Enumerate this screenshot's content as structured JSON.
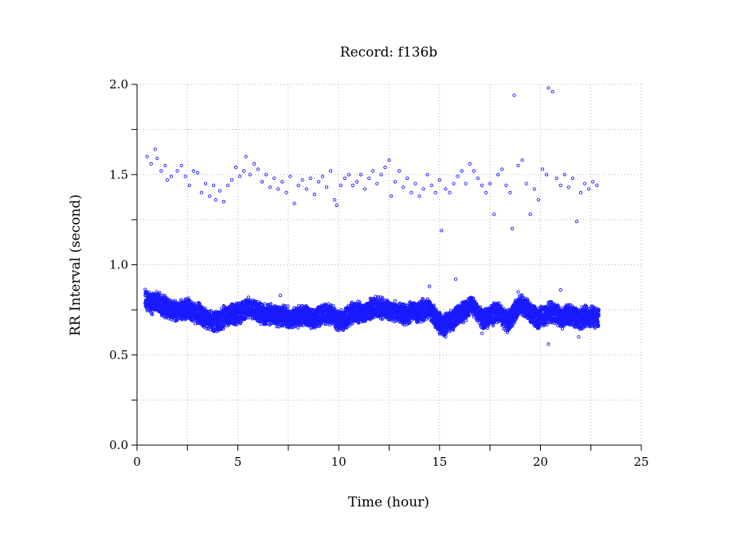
{
  "chart_data": {
    "type": "scatter",
    "title": "Record:  f136b",
    "xlabel": "Time (hour)",
    "ylabel": "RR Interval (second)",
    "xlim": [
      0,
      25
    ],
    "ylim": [
      0,
      2.0
    ],
    "x_ticks": [
      0,
      5,
      10,
      15,
      20,
      25
    ],
    "x_tick_labels": [
      "0",
      "5",
      "10",
      "15",
      "20",
      "25"
    ],
    "y_ticks": [
      0,
      0.5,
      1.0,
      1.5,
      2.0
    ],
    "y_tick_labels": [
      "0.0",
      "0.5",
      "1.0",
      "1.5",
      "2.0"
    ],
    "x_minor_ticks": [
      2.5,
      7.5,
      12.5,
      17.5,
      22.5
    ],
    "y_minor_ticks": [
      0.25,
      0.75,
      1.25,
      1.75
    ],
    "grid": true,
    "marker_color": "#1a1aff",
    "series": [
      {
        "band": "main",
        "points": [
          [
            0.4,
            0.81
          ],
          [
            0.7,
            0.78
          ],
          [
            1.0,
            0.8
          ],
          [
            1.3,
            0.77
          ],
          [
            1.6,
            0.76
          ],
          [
            1.9,
            0.74
          ],
          [
            2.2,
            0.75
          ],
          [
            2.5,
            0.76
          ],
          [
            2.8,
            0.74
          ],
          [
            3.1,
            0.73
          ],
          [
            3.4,
            0.7
          ],
          [
            3.7,
            0.69
          ],
          [
            4.0,
            0.68
          ],
          [
            4.3,
            0.71
          ],
          [
            4.6,
            0.72
          ],
          [
            4.9,
            0.73
          ],
          [
            5.2,
            0.74
          ],
          [
            5.5,
            0.76
          ],
          [
            5.8,
            0.75
          ],
          [
            6.1,
            0.73
          ],
          [
            6.4,
            0.72
          ],
          [
            6.7,
            0.73
          ],
          [
            7.0,
            0.71
          ],
          [
            7.3,
            0.72
          ],
          [
            7.6,
            0.7
          ],
          [
            7.9,
            0.71
          ],
          [
            8.2,
            0.72
          ],
          [
            8.5,
            0.71
          ],
          [
            8.8,
            0.7
          ],
          [
            9.1,
            0.72
          ],
          [
            9.4,
            0.73
          ],
          [
            9.7,
            0.72
          ],
          [
            10.0,
            0.68
          ],
          [
            10.3,
            0.7
          ],
          [
            10.6,
            0.73
          ],
          [
            10.9,
            0.74
          ],
          [
            11.2,
            0.73
          ],
          [
            11.5,
            0.75
          ],
          [
            11.8,
            0.77
          ],
          [
            12.1,
            0.76
          ],
          [
            12.4,
            0.75
          ],
          [
            12.7,
            0.74
          ],
          [
            13.0,
            0.73
          ],
          [
            13.3,
            0.72
          ],
          [
            13.6,
            0.74
          ],
          [
            13.9,
            0.73
          ],
          [
            14.2,
            0.75
          ],
          [
            14.5,
            0.76
          ],
          [
            14.8,
            0.7
          ],
          [
            15.1,
            0.66
          ],
          [
            15.4,
            0.68
          ],
          [
            15.7,
            0.7
          ],
          [
            16.0,
            0.73
          ],
          [
            16.3,
            0.75
          ],
          [
            16.6,
            0.78
          ],
          [
            16.9,
            0.73
          ],
          [
            17.2,
            0.7
          ],
          [
            17.5,
            0.71
          ],
          [
            17.8,
            0.74
          ],
          [
            18.1,
            0.72
          ],
          [
            18.4,
            0.68
          ],
          [
            18.7,
            0.74
          ],
          [
            19.0,
            0.78
          ],
          [
            19.3,
            0.76
          ],
          [
            19.6,
            0.73
          ],
          [
            19.9,
            0.7
          ],
          [
            20.2,
            0.72
          ],
          [
            20.5,
            0.74
          ],
          [
            20.8,
            0.72
          ],
          [
            21.1,
            0.7
          ],
          [
            21.4,
            0.73
          ],
          [
            21.7,
            0.71
          ],
          [
            22.0,
            0.7
          ],
          [
            22.3,
            0.72
          ],
          [
            22.6,
            0.71
          ],
          [
            22.9,
            0.7
          ]
        ]
      },
      {
        "band": "upper",
        "points": [
          [
            0.5,
            1.6
          ],
          [
            0.7,
            1.56
          ],
          [
            0.9,
            1.64
          ],
          [
            1.0,
            1.59
          ],
          [
            1.2,
            1.52
          ],
          [
            1.4,
            1.55
          ],
          [
            1.5,
            1.47
          ],
          [
            1.7,
            1.49
          ],
          [
            2.0,
            1.52
          ],
          [
            2.2,
            1.55
          ],
          [
            2.4,
            1.49
          ],
          [
            2.6,
            1.44
          ],
          [
            2.8,
            1.52
          ],
          [
            3.0,
            1.51
          ],
          [
            3.2,
            1.4
          ],
          [
            3.4,
            1.45
          ],
          [
            3.6,
            1.38
          ],
          [
            3.8,
            1.44
          ],
          [
            3.9,
            1.36
          ],
          [
            4.1,
            1.41
          ],
          [
            4.3,
            1.35
          ],
          [
            4.5,
            1.44
          ],
          [
            4.7,
            1.47
          ],
          [
            4.9,
            1.54
          ],
          [
            5.1,
            1.49
          ],
          [
            5.3,
            1.52
          ],
          [
            5.4,
            1.6
          ],
          [
            5.6,
            1.5
          ],
          [
            5.8,
            1.56
          ],
          [
            6.0,
            1.53
          ],
          [
            6.2,
            1.46
          ],
          [
            6.4,
            1.5
          ],
          [
            6.6,
            1.43
          ],
          [
            6.8,
            1.48
          ],
          [
            7.0,
            1.42
          ],
          [
            7.2,
            1.46
          ],
          [
            7.4,
            1.4
          ],
          [
            7.6,
            1.49
          ],
          [
            7.8,
            1.34
          ],
          [
            8.0,
            1.44
          ],
          [
            8.2,
            1.47
          ],
          [
            8.4,
            1.42
          ],
          [
            8.6,
            1.48
          ],
          [
            8.8,
            1.39
          ],
          [
            9.0,
            1.46
          ],
          [
            9.2,
            1.49
          ],
          [
            9.4,
            1.43
          ],
          [
            9.6,
            1.52
          ],
          [
            9.8,
            1.36
          ],
          [
            9.9,
            1.33
          ],
          [
            10.1,
            1.44
          ],
          [
            10.3,
            1.48
          ],
          [
            10.5,
            1.5
          ],
          [
            10.7,
            1.44
          ],
          [
            10.9,
            1.46
          ],
          [
            11.1,
            1.5
          ],
          [
            11.3,
            1.42
          ],
          [
            11.5,
            1.48
          ],
          [
            11.7,
            1.52
          ],
          [
            11.9,
            1.45
          ],
          [
            12.1,
            1.5
          ],
          [
            12.3,
            1.54
          ],
          [
            12.5,
            1.58
          ],
          [
            12.6,
            1.38
          ],
          [
            12.8,
            1.46
          ],
          [
            13.0,
            1.52
          ],
          [
            13.2,
            1.43
          ],
          [
            13.4,
            1.48
          ],
          [
            13.6,
            1.4
          ],
          [
            13.8,
            1.45
          ],
          [
            14.0,
            1.38
          ],
          [
            14.2,
            1.42
          ],
          [
            14.4,
            1.5
          ],
          [
            14.6,
            1.44
          ],
          [
            14.8,
            1.4
          ],
          [
            15.0,
            1.47
          ],
          [
            15.1,
            1.19
          ],
          [
            15.3,
            1.42
          ],
          [
            15.5,
            1.4
          ],
          [
            15.7,
            1.45
          ],
          [
            15.9,
            1.49
          ],
          [
            16.1,
            1.52
          ],
          [
            16.3,
            1.45
          ],
          [
            16.5,
            1.56
          ],
          [
            16.7,
            1.52
          ],
          [
            16.9,
            1.48
          ],
          [
            17.1,
            1.44
          ],
          [
            17.3,
            1.4
          ],
          [
            17.5,
            1.45
          ],
          [
            17.7,
            1.28
          ],
          [
            17.9,
            1.5
          ],
          [
            18.1,
            1.53
          ],
          [
            18.3,
            1.44
          ],
          [
            18.5,
            1.4
          ],
          [
            18.6,
            1.2
          ],
          [
            18.7,
            1.94
          ],
          [
            18.9,
            1.55
          ],
          [
            19.1,
            1.58
          ],
          [
            19.3,
            1.45
          ],
          [
            19.5,
            1.28
          ],
          [
            19.7,
            1.42
          ],
          [
            19.9,
            1.36
          ],
          [
            20.1,
            1.53
          ],
          [
            20.3,
            1.5
          ],
          [
            20.4,
            1.98
          ],
          [
            20.6,
            1.96
          ],
          [
            20.8,
            1.48
          ],
          [
            21.0,
            1.44
          ],
          [
            21.2,
            1.5
          ],
          [
            21.4,
            1.43
          ],
          [
            21.6,
            1.48
          ],
          [
            21.8,
            1.24
          ],
          [
            22.0,
            1.4
          ],
          [
            22.2,
            1.45
          ],
          [
            22.4,
            1.42
          ],
          [
            22.6,
            1.46
          ],
          [
            22.8,
            1.44
          ]
        ]
      },
      {
        "band": "mid-outliers",
        "points": [
          [
            14.5,
            0.88
          ],
          [
            15.8,
            0.92
          ],
          [
            7.1,
            0.83
          ],
          [
            18.9,
            0.85
          ],
          [
            21.0,
            0.86
          ]
        ]
      },
      {
        "band": "low-outliers",
        "points": [
          [
            20.4,
            0.56
          ],
          [
            21.9,
            0.6
          ],
          [
            17.1,
            0.62
          ],
          [
            15.3,
            0.6
          ]
        ]
      }
    ]
  }
}
